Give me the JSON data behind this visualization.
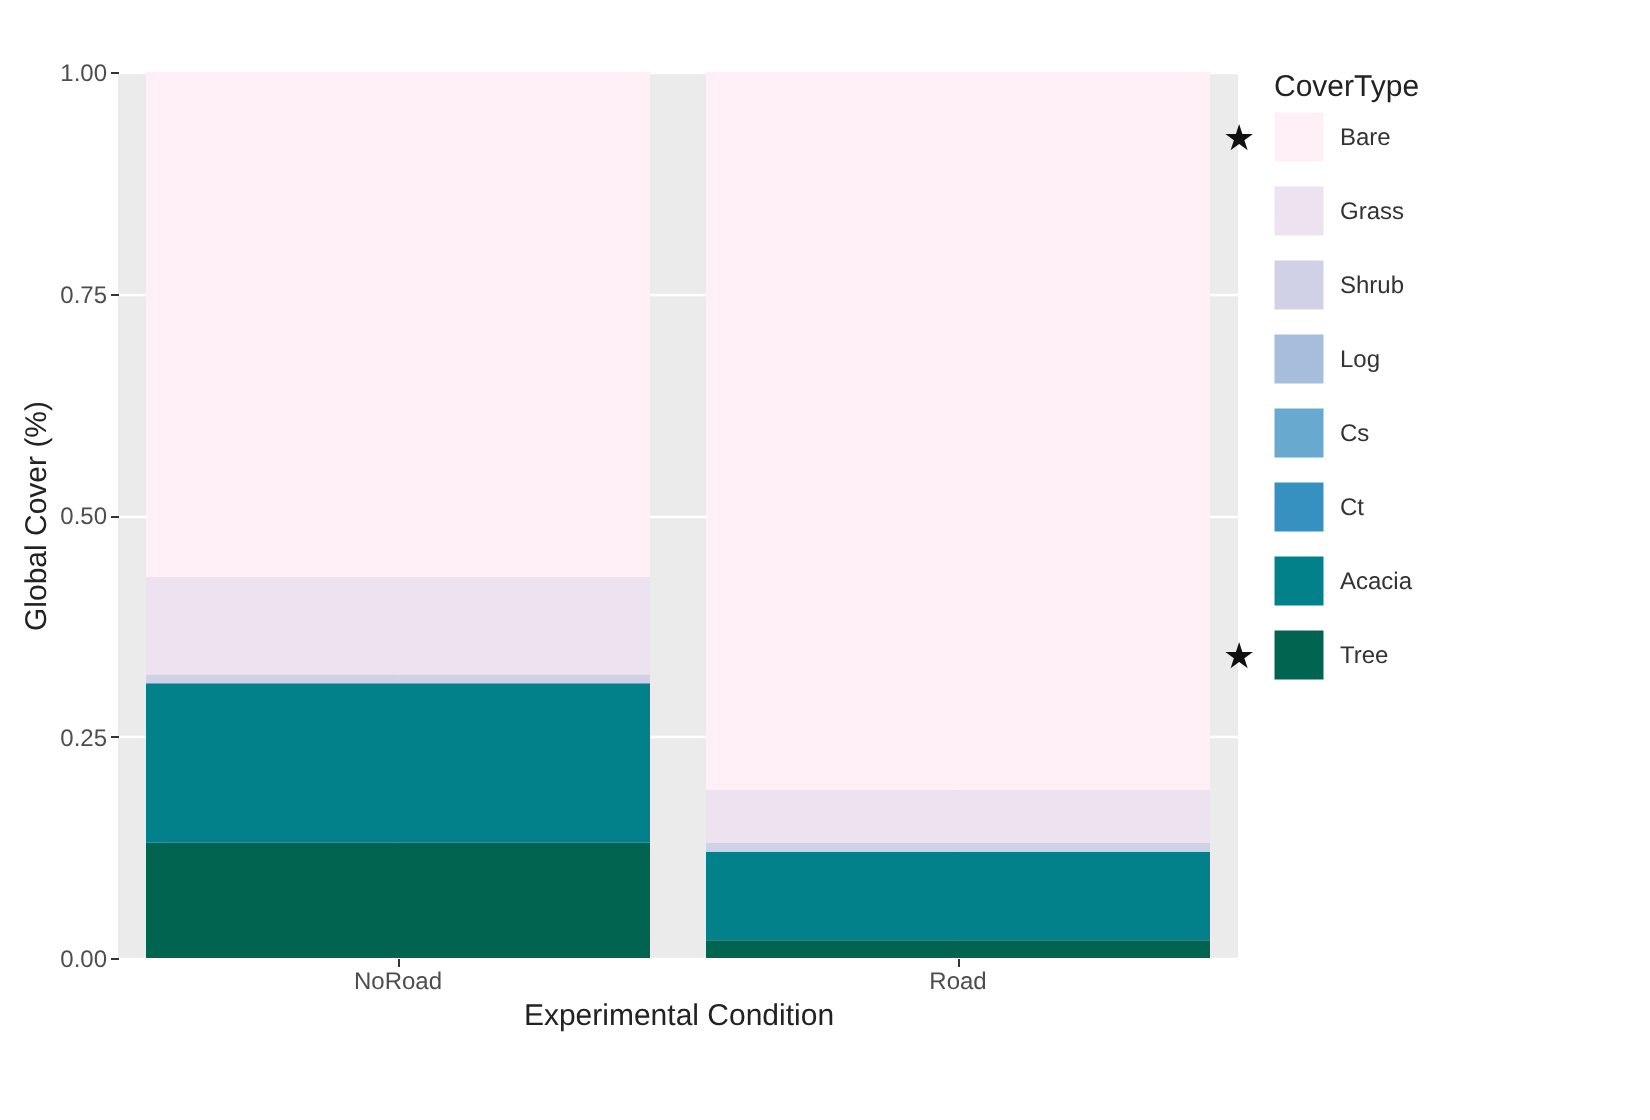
{
  "chart_data": {
    "type": "bar",
    "stacked": true,
    "xlabel": "Experimental Condition",
    "ylabel": "Global Cover (%)",
    "legend_title": "CoverType",
    "categories": [
      "NoRoad",
      "Road"
    ],
    "series": [
      {
        "name": "Tree",
        "color": "#016450",
        "values": [
          0.13,
          0.02
        ]
      },
      {
        "name": "Acacia",
        "color": "#02818a",
        "values": [
          0.18,
          0.1
        ]
      },
      {
        "name": "Ct",
        "color": "#3690c0",
        "values": [
          0,
          0
        ]
      },
      {
        "name": "Cs",
        "color": "#67a9cf",
        "values": [
          0,
          0
        ]
      },
      {
        "name": "Log",
        "color": "#a6bddb",
        "values": [
          0,
          0
        ]
      },
      {
        "name": "Shrub",
        "color": "#d0d1e6",
        "values": [
          0.01,
          0.01
        ]
      },
      {
        "name": "Grass",
        "color": "#ece2f0",
        "values": [
          0.11,
          0.06
        ]
      },
      {
        "name": "Bare",
        "color": "#fff0f7",
        "values": [
          0.57,
          0.81
        ]
      }
    ],
    "ylim": [
      0,
      1
    ],
    "yticks": [
      {
        "value": 0,
        "label": "0.00"
      },
      {
        "value": 0.25,
        "label": "0.25"
      },
      {
        "value": 0.5,
        "label": "0.50"
      },
      {
        "value": 0.75,
        "label": "0.75"
      },
      {
        "value": 1,
        "label": "1.00"
      }
    ],
    "grid": true,
    "legend": "right",
    "annotations": [
      "★",
      "★"
    ]
  }
}
